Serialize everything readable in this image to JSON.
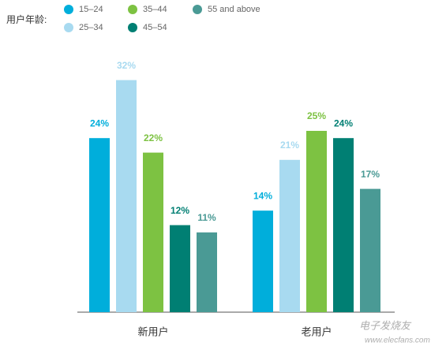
{
  "chart_data": {
    "type": "bar",
    "legend_title": "用户年龄:",
    "categories": [
      "新用户",
      "老用户"
    ],
    "series": [
      {
        "name": "15–24",
        "color": "#00aedb",
        "values": [
          24,
          14
        ],
        "value_labels": [
          "24%",
          "14%"
        ]
      },
      {
        "name": "25–34",
        "color": "#a8daf0",
        "values": [
          32,
          21
        ],
        "value_labels": [
          "32%",
          "21%"
        ]
      },
      {
        "name": "35–44",
        "color": "#7dc242",
        "values": [
          22,
          25
        ],
        "value_labels": [
          "22%",
          "25%"
        ]
      },
      {
        "name": "45–54",
        "color": "#007f73",
        "values": [
          12,
          24
        ],
        "value_labels": [
          "12%",
          "24%"
        ]
      },
      {
        "name": "55 and above",
        "color": "#4a9a95",
        "values": [
          11,
          17
        ],
        "value_labels": [
          "11%",
          "17%"
        ]
      }
    ],
    "watermark": [
      "电子发烧友",
      "www.elecfans.com"
    ]
  }
}
